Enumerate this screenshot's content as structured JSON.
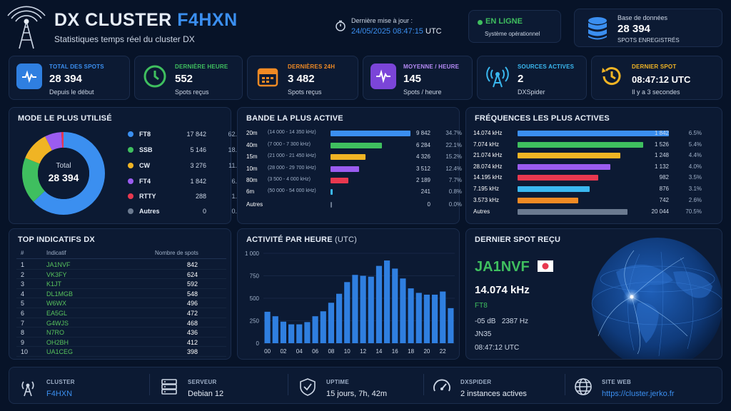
{
  "header": {
    "title_main": "DX CLUSTER",
    "title_call": "F4HXN",
    "subtitle": "Statistiques temps réel du cluster DX",
    "update_label": "Dernière mise à jour :",
    "update_date": "24/05/2025 08:47:15",
    "update_tz": "UTC",
    "status_label": "EN LIGNE",
    "status_sub": "Système opérationnel",
    "db_label": "Base de données",
    "db_value": "28 394",
    "db_sub": "SPOTS ENREGISTRÉS"
  },
  "cards": [
    {
      "label": "TOTAL DES SPOTS",
      "value": "28 394",
      "sub": "Depuis le début",
      "color": "#3b8ff0",
      "icon": "pulse-icon"
    },
    {
      "label": "DERNIÈRE HEURE",
      "value": "552",
      "sub": "Spots reçus",
      "color": "#3fbf5f",
      "icon": "clock-icon"
    },
    {
      "label": "DERNIÈRES 24H",
      "value": "3 482",
      "sub": "Spots reçus",
      "color": "#f08a24",
      "icon": "calendar-icon"
    },
    {
      "label": "MOYENNE / HEURE",
      "value": "145",
      "sub": "Spots / heure",
      "color": "#9b5cf0",
      "icon": "activity-icon"
    },
    {
      "label": "SOURCES ACTIVES",
      "value": "2",
      "sub": "DXSpider",
      "color": "#3ab8f0",
      "icon": "antenna-icon"
    },
    {
      "label": "DERNIER SPOT",
      "value": "08:47:12 UTC",
      "sub": "Il y a 3 secondes",
      "color": "#f0b424",
      "icon": "history-icon"
    }
  ],
  "modes": {
    "title": "MODE LE PLUS UTILISÉ",
    "center_label": "Total",
    "center_value": "28 394",
    "items": [
      {
        "name": "FT8",
        "count": "17 842",
        "pct": "62.8%",
        "value": 62.8,
        "color": "#3b8ff0"
      },
      {
        "name": "SSB",
        "count": "5 146",
        "pct": "18.1%",
        "value": 18.1,
        "color": "#3fbf5f"
      },
      {
        "name": "CW",
        "count": "3 276",
        "pct": "11.5%",
        "value": 11.5,
        "color": "#f0b424"
      },
      {
        "name": "FT4",
        "count": "1 842",
        "pct": "6.5%",
        "value": 6.5,
        "color": "#9b5cf0"
      },
      {
        "name": "RTTY",
        "count": "288",
        "pct": "1.0%",
        "value": 1.0,
        "color": "#e8384f"
      },
      {
        "name": "Autres",
        "count": "0",
        "pct": "0.0%",
        "value": 0,
        "color": "#6b7a90"
      }
    ]
  },
  "bands": {
    "title": "BANDE LA PLUS ACTIVE",
    "max": 9842,
    "items": [
      {
        "name": "20m",
        "range": "(14 000 - 14 350 kHz)",
        "count": "9 842",
        "value": 9842,
        "pct": "34.7%",
        "color": "#3b8ff0"
      },
      {
        "name": "40m",
        "range": "(7 000 - 7 300 kHz)",
        "count": "6 284",
        "value": 6284,
        "pct": "22.1%",
        "color": "#3fbf5f"
      },
      {
        "name": "15m",
        "range": "(21 000 - 21 450 kHz)",
        "count": "4 326",
        "value": 4326,
        "pct": "15.2%",
        "color": "#f0b424"
      },
      {
        "name": "10m",
        "range": "(28 000 - 29 700 kHz)",
        "count": "3 512",
        "value": 3512,
        "pct": "12.4%",
        "color": "#9b5cf0"
      },
      {
        "name": "80m",
        "range": "(3 500 - 4 000 kHz)",
        "count": "2 189",
        "value": 2189,
        "pct": "7.7%",
        "color": "#e8384f"
      },
      {
        "name": "6m",
        "range": "(50 000 - 54 000 kHz)",
        "count": "241",
        "value": 241,
        "pct": "0.8%",
        "color": "#3ab8f0"
      },
      {
        "name": "Autres",
        "range": "",
        "count": "0",
        "value": 0,
        "pct": "0.0%",
        "color": "#6b7a90"
      }
    ]
  },
  "freqs": {
    "title": "FRÉQUENCES LES PLUS ACTIVES",
    "max": 20044,
    "items": [
      {
        "name": "14.074 kHz",
        "count": "1 842",
        "value": 1842,
        "pct": "6.5%",
        "color": "#3b8ff0"
      },
      {
        "name": "7.074 kHz",
        "count": "1 526",
        "value": 1526,
        "pct": "5.4%",
        "color": "#3fbf5f"
      },
      {
        "name": "21.074 kHz",
        "count": "1 248",
        "value": 1248,
        "pct": "4.4%",
        "color": "#f0b424"
      },
      {
        "name": "28.074 kHz",
        "count": "1 132",
        "value": 1132,
        "pct": "4.0%",
        "color": "#9b5cf0"
      },
      {
        "name": "14.195 kHz",
        "count": "982",
        "value": 982,
        "pct": "3.5%",
        "color": "#e8384f"
      },
      {
        "name": "7.195 kHz",
        "count": "876",
        "value": 876,
        "pct": "3.1%",
        "color": "#3ab8f0"
      },
      {
        "name": "3.573 kHz",
        "count": "742",
        "value": 742,
        "pct": "2.6%",
        "color": "#f08a24"
      },
      {
        "name": "Autres",
        "count": "20 044",
        "value": 20044,
        "pct": "70.5%",
        "color": "#6b7a90"
      }
    ]
  },
  "top": {
    "title": "TOP INDICATIFS DX",
    "col_rank": "#",
    "col_call": "Indicatif",
    "col_count": "Nombre de spots",
    "rows": [
      {
        "rank": "1",
        "call": "JA1NVF",
        "count": "842"
      },
      {
        "rank": "2",
        "call": "VK3FY",
        "count": "624"
      },
      {
        "rank": "3",
        "call": "K1JT",
        "count": "592"
      },
      {
        "rank": "4",
        "call": "DL1MGB",
        "count": "548"
      },
      {
        "rank": "5",
        "call": "W6WX",
        "count": "496"
      },
      {
        "rank": "6",
        "call": "EA5GL",
        "count": "472"
      },
      {
        "rank": "7",
        "call": "G4WJS",
        "count": "468"
      },
      {
        "rank": "8",
        "call": "N7RO",
        "count": "436"
      },
      {
        "rank": "9",
        "call": "OH2BH",
        "count": "412"
      },
      {
        "rank": "10",
        "call": "UA1CEG",
        "count": "398"
      }
    ]
  },
  "hourly": {
    "title": "ACTIVITÉ PAR HEURE",
    "title_suffix": "(UTC)",
    "chart_data": {
      "type": "bar",
      "x": [
        0,
        1,
        2,
        3,
        4,
        5,
        6,
        7,
        8,
        9,
        10,
        11,
        12,
        13,
        14,
        15,
        16,
        17,
        18,
        19,
        20,
        21,
        22,
        23
      ],
      "values": [
        350,
        300,
        240,
        210,
        210,
        235,
        300,
        355,
        450,
        550,
        680,
        760,
        750,
        740,
        860,
        920,
        830,
        720,
        610,
        560,
        540,
        540,
        575,
        390
      ],
      "ylim": [
        0,
        1000
      ],
      "yticks": [
        "1 000",
        "750",
        "500",
        "250",
        "0"
      ],
      "xticks": [
        "00",
        "02",
        "04",
        "06",
        "08",
        "10",
        "12",
        "14",
        "16",
        "18",
        "20",
        "22"
      ],
      "color": "#2f7fe0"
    }
  },
  "last_spot": {
    "title": "DERNIER SPOT REÇU",
    "call": "JA1NVF",
    "freq": "14.074 kHz",
    "mode": "FT8",
    "signal": "-05 dB",
    "offset": "2387 Hz",
    "locator": "JN35",
    "time": "08:47:12 UTC"
  },
  "footer": [
    {
      "label": "CLUSTER",
      "value": "F4HXN",
      "accent": true,
      "icon": "antenna-icon"
    },
    {
      "label": "SERVEUR",
      "value": "Debian 12",
      "accent": false,
      "icon": "server-icon"
    },
    {
      "label": "UPTIME",
      "value": "15 jours, 7h, 42m",
      "accent": false,
      "icon": "shield-icon"
    },
    {
      "label": "DXSPIDER",
      "value": "2 instances actives",
      "accent": false,
      "icon": "gauge-icon"
    },
    {
      "label": "SITE WEB",
      "value": "https://cluster.jerko.fr",
      "accent": true,
      "icon": "globe-icon"
    }
  ]
}
